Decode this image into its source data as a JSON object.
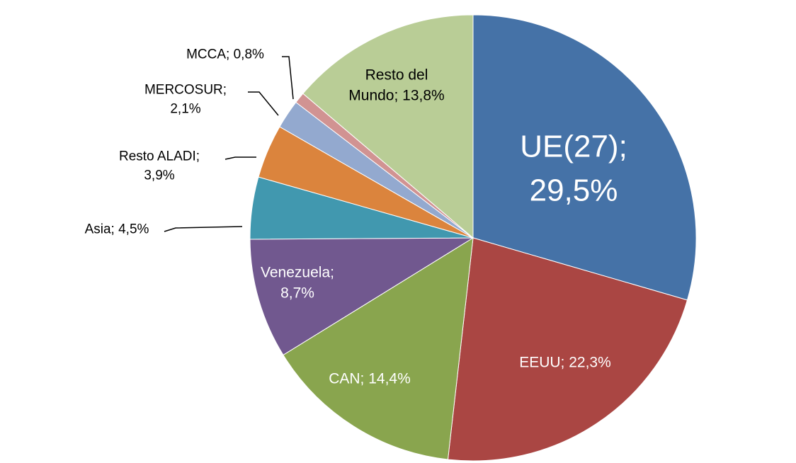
{
  "chart_data": {
    "type": "pie",
    "categories": [
      "UE(27);",
      "EEUU;",
      "CAN;",
      "Venezuela;",
      "Asia;",
      "Resto ALADI;",
      "MERCOSUR;",
      "MCCA;",
      "Resto del Mundo;"
    ],
    "values": [
      29.5,
      22.3,
      14.4,
      8.7,
      4.5,
      3.9,
      2.1,
      0.8,
      13.8
    ],
    "value_labels": [
      "29,5%",
      "22,3%",
      "14,4%",
      "8,7%",
      "4,5%",
      "3,9%",
      "2,1%",
      "0,8%",
      "13,8%"
    ],
    "colors": [
      "#4572a7",
      "#aa4643",
      "#89a54e",
      "#71588f",
      "#4198af",
      "#db843d",
      "#93a9cf",
      "#d19392",
      "#b9cd96"
    ]
  }
}
